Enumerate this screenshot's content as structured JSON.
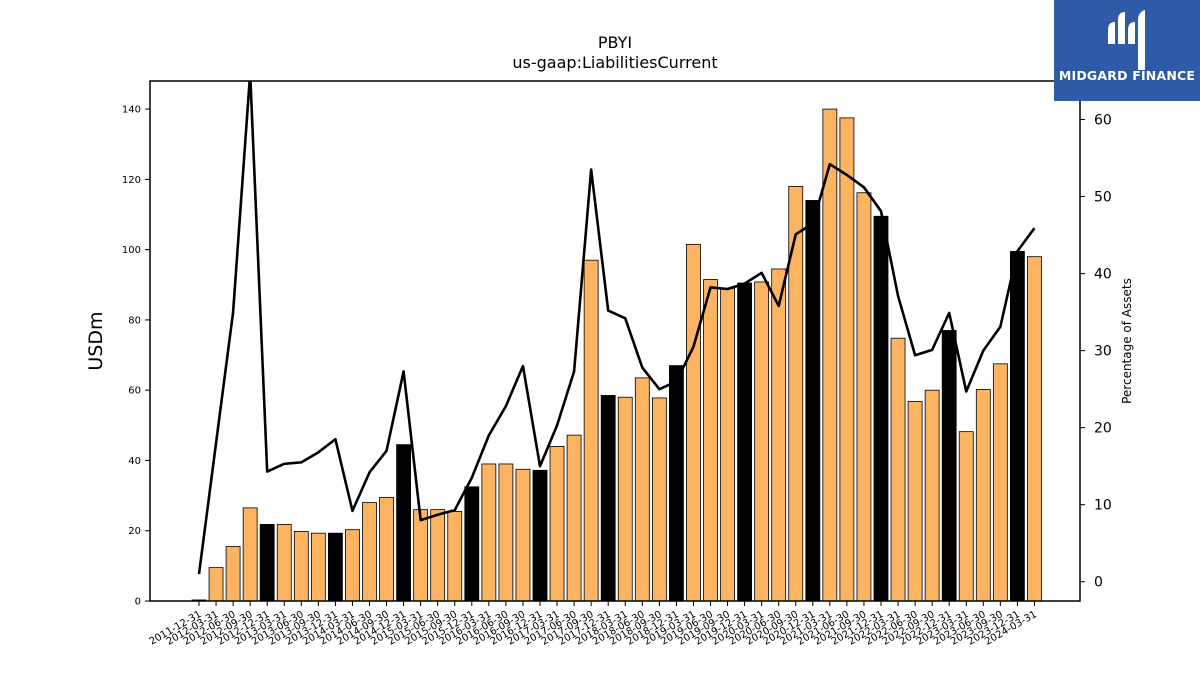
{
  "chart_data": {
    "type": "bar",
    "title": "PBYI",
    "subtitle": "us-gaap:LiabilitiesCurrent",
    "ylabel": "USDm",
    "y2label": "Percentage of Assets",
    "ylim": [
      0,
      148
    ],
    "y2lim": [
      -2.5,
      65
    ],
    "yticks": [
      0,
      20,
      40,
      60,
      80,
      100,
      120,
      140
    ],
    "y2ticks": [
      0,
      10,
      20,
      30,
      40,
      50,
      60
    ],
    "categories": [
      "2011-12-31",
      "2012-03-31",
      "2012-06-30",
      "2012-09-30",
      "2012-12-31",
      "2013-03-31",
      "2013-06-30",
      "2013-09-30",
      "2013-12-31",
      "2014-03-31",
      "2014-06-30",
      "2014-09-30",
      "2014-12-31",
      "2015-03-31",
      "2015-06-30",
      "2015-09-30",
      "2015-12-31",
      "2016-03-31",
      "2016-06-30",
      "2016-09-30",
      "2016-12-31",
      "2017-03-31",
      "2017-06-30",
      "2017-09-30",
      "2017-12-31",
      "2018-03-31",
      "2018-06-30",
      "2018-09-30",
      "2018-12-31",
      "2019-03-31",
      "2019-06-30",
      "2019-09-30",
      "2019-12-31",
      "2020-03-31",
      "2020-06-30",
      "2020-09-30",
      "2020-12-31",
      "2021-03-31",
      "2021-06-30",
      "2021-09-30",
      "2021-12-31",
      "2022-03-31",
      "2022-06-30",
      "2022-09-30",
      "2022-12-31",
      "2023-03-31",
      "2023-06-30",
      "2023-09-30",
      "2023-12-31",
      "2024-03-31"
    ],
    "xtick_labels": [
      "2011-12-31",
      "2012-03-31",
      "2012-06-30",
      "2012-09-30",
      "2012-12-31",
      "2013-03-31",
      "2013-06-30",
      "2013-09-30",
      "2013-12-31",
      "2014-03-31",
      "2014-06-30",
      "2014-09-30",
      "2014-12-31",
      "2015-03-31",
      "2015-06-30",
      "2015-09-30",
      "2015-12-31",
      "2016-03-31",
      "2016-06-30",
      "2016-09-30",
      "2016-12-31",
      "2017-03-31",
      "2017-06-30",
      "2017-09-30",
      "2017-12-31",
      "2018-03-31",
      "2018-06-30",
      "2018-09-30",
      "2018-12-31",
      "2019-03-31",
      "2019-06-30",
      "2019-09-30",
      "2019-12-31",
      "2020-03-31",
      "2020-06-30",
      "2020-09-30",
      "2020-12-31",
      "2021-03-31",
      "2021-06-30",
      "2021-09-30",
      "2021-12-31",
      "2022-03-31",
      "2022-06-30",
      "2022-09-30",
      "2022-12-31",
      "2023-03-31",
      "2023-06-30",
      "2023-09-30",
      "2023-12-31",
      "2024-03-31"
    ],
    "series": [
      {
        "values": [
          0.3,
          9.5,
          15.5,
          26.5,
          21.8,
          21.8,
          19.8,
          19.3,
          19.3,
          20.3,
          28.0,
          29.5,
          44.5,
          26.0,
          26.0,
          25.5,
          32.5,
          39.0,
          39.0,
          37.5,
          37.2,
          44.0,
          47.2,
          97.0,
          58.5,
          58.0,
          63.5,
          57.8,
          67.0,
          101.5,
          91.5,
          89.0,
          90.5,
          90.8,
          94.5,
          118.0,
          114.0,
          140.0,
          137.5,
          116.2,
          109.5,
          74.8,
          56.8,
          60.0,
          77.0,
          48.2,
          60.2,
          67.5,
          99.5,
          98.0
        ],
        "fiscal_year_end": [
          true,
          false,
          false,
          false,
          true,
          false,
          false,
          false,
          true,
          false,
          false,
          false,
          true,
          false,
          false,
          false,
          true,
          false,
          false,
          false,
          true,
          false,
          false,
          false,
          true,
          false,
          false,
          false,
          true,
          false,
          false,
          false,
          true,
          false,
          false,
          false,
          true,
          false,
          false,
          false,
          true,
          false,
          false,
          false,
          true,
          false,
          false,
          false,
          true,
          false
        ]
      },
      {
        "axis": "right",
        "type": "line",
        "values": [
          1.0,
          18.0,
          35.0,
          66.0,
          14.3,
          15.3,
          15.5,
          16.8,
          18.5,
          9.2,
          14.2,
          17.0,
          27.3,
          8.0,
          8.7,
          9.3,
          13.5,
          19.0,
          22.8,
          28.0,
          15.0,
          20.3,
          27.3,
          53.5,
          35.2,
          34.2,
          27.8,
          25.0,
          26.0,
          30.5,
          38.2,
          38.0,
          38.7,
          40.1,
          35.8,
          45.1,
          46.5,
          54.2,
          52.8,
          51.2,
          48.1,
          37.1,
          29.4,
          30.1,
          34.9,
          24.7,
          30.0,
          33.1,
          42.9,
          45.9
        ]
      }
    ],
    "colors": {
      "bar_regular": "#fdb462",
      "bar_highlight": "#000000",
      "bar_edge": "#000000",
      "line": "#000000",
      "logo_bg": "#2f5aa8"
    },
    "grid": false,
    "legend": "none"
  },
  "logo": {
    "text": "MIDGARD FINANCE",
    "icon": "midgard-logo-icon"
  }
}
